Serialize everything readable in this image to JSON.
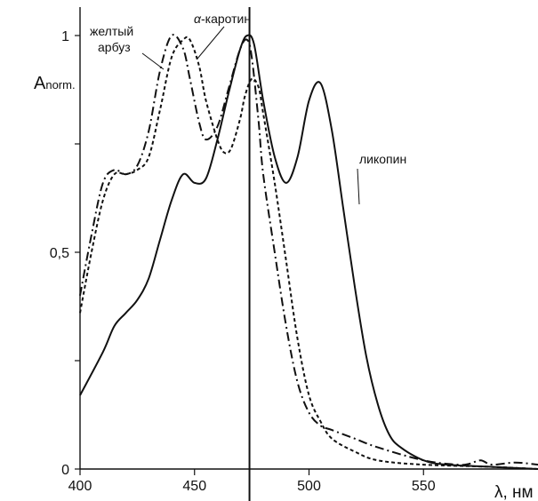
{
  "chart_data": {
    "type": "line",
    "title": "",
    "xlabel": "λ, нм",
    "ylabel": "Anorm.",
    "ylabel_main": "A",
    "ylabel_sub": "norm.",
    "xlim": [
      400,
      600
    ],
    "ylim": [
      0,
      1.05
    ],
    "x_ticks": [
      {
        "value": 400,
        "label": "400"
      },
      {
        "value": 450,
        "label": "450"
      },
      {
        "value": 500,
        "label": "500"
      },
      {
        "value": 550,
        "label": "550"
      }
    ],
    "y_ticks": [
      {
        "value": 0,
        "label": "0"
      },
      {
        "value": 0.25,
        "label": ""
      },
      {
        "value": 0.5,
        "label": "0,5"
      },
      {
        "value": 0.75,
        "label": ""
      },
      {
        "value": 1,
        "label": "1"
      }
    ],
    "vertical_line_x": 474,
    "grid": false,
    "series": [
      {
        "name": "ликопин",
        "style": "solid",
        "x": [
          400,
          410,
          415,
          420,
          425,
          430,
          435,
          440,
          445,
          450,
          455,
          460,
          465,
          470,
          473,
          476,
          480,
          485,
          490,
          495,
          500,
          505,
          510,
          515,
          520,
          525,
          530,
          535,
          540,
          550,
          560,
          580,
          600
        ],
        "y": [
          0.17,
          0.27,
          0.33,
          0.36,
          0.39,
          0.44,
          0.53,
          0.62,
          0.68,
          0.66,
          0.67,
          0.76,
          0.87,
          0.97,
          1.0,
          0.98,
          0.85,
          0.72,
          0.66,
          0.72,
          0.85,
          0.89,
          0.78,
          0.6,
          0.42,
          0.26,
          0.15,
          0.08,
          0.05,
          0.02,
          0.01,
          0.005,
          0.0
        ]
      },
      {
        "name": "α-каротин",
        "style": "dashed",
        "x": [
          400,
          405,
          410,
          415,
          420,
          425,
          430,
          435,
          440,
          445,
          448,
          452,
          455,
          460,
          463,
          466,
          470,
          472,
          475,
          478,
          480,
          485,
          490,
          495,
          500,
          505,
          510,
          520,
          530,
          550,
          580,
          600
        ],
        "y": [
          0.36,
          0.5,
          0.62,
          0.68,
          0.68,
          0.69,
          0.72,
          0.83,
          0.95,
          0.99,
          0.99,
          0.93,
          0.85,
          0.76,
          0.73,
          0.74,
          0.81,
          0.86,
          0.9,
          0.88,
          0.82,
          0.66,
          0.48,
          0.3,
          0.17,
          0.11,
          0.07,
          0.04,
          0.02,
          0.01,
          0.005,
          0.0
        ]
      },
      {
        "name": "желтый арбуз",
        "style": "dashdot",
        "x": [
          400,
          405,
          410,
          415,
          420,
          425,
          430,
          435,
          440,
          445,
          448,
          452,
          455,
          460,
          465,
          470,
          473,
          475,
          478,
          480,
          485,
          490,
          495,
          500,
          505,
          510,
          520,
          530,
          550,
          565,
          570,
          575,
          580,
          590,
          600
        ],
        "y": [
          0.4,
          0.54,
          0.66,
          0.69,
          0.68,
          0.7,
          0.78,
          0.92,
          1.0,
          0.97,
          0.9,
          0.8,
          0.76,
          0.79,
          0.88,
          0.97,
          0.99,
          0.95,
          0.8,
          0.68,
          0.5,
          0.33,
          0.2,
          0.13,
          0.1,
          0.09,
          0.07,
          0.05,
          0.02,
          0.01,
          0.012,
          0.02,
          0.01,
          0.015,
          0.01
        ]
      }
    ],
    "annotations": [
      {
        "text": "желтый",
        "series": "желтый арбуз"
      },
      {
        "text": "арбуз",
        "series": "желтый арбуз"
      },
      {
        "text": "-каротин",
        "prefix": "α",
        "series": "α-каротин"
      },
      {
        "text": "ликопин",
        "series": "ликопин"
      }
    ]
  }
}
